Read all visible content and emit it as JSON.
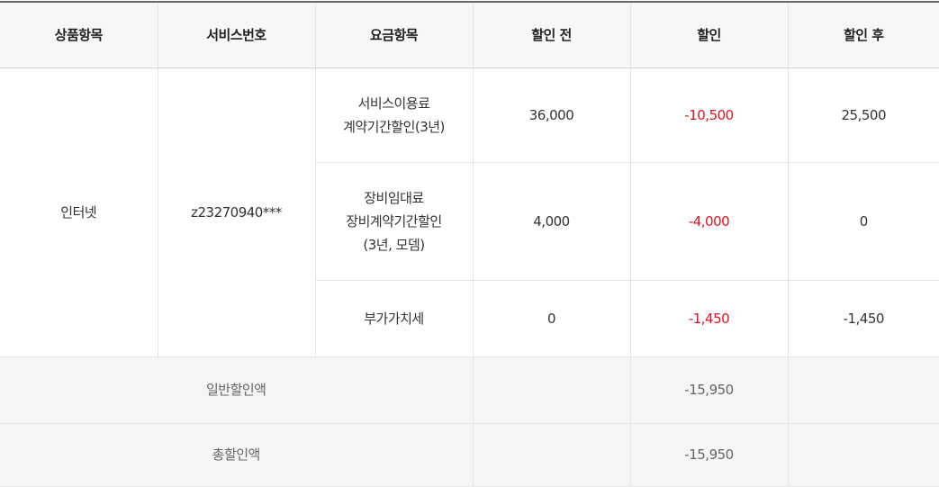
{
  "headers": [
    "상품항목",
    "서비스번호",
    "요금항목",
    "할인 전",
    "할인",
    "할인 후"
  ],
  "product": "인터넷",
  "service_no": "z23270940***",
  "rows": [
    {
      "item_line1": "서비스이용료",
      "item_line2": "계약기간할인(3년)",
      "item_line3": "",
      "before": "36,000",
      "discount": "-10,500",
      "after": "25,500"
    },
    {
      "item_line1": "장비임대료",
      "item_line2": "장비계약기간할인",
      "item_line3": "(3년, 모뎀)",
      "before": "4,000",
      "discount": "-4,000",
      "after": "0"
    },
    {
      "item_line1": "부가가치세",
      "item_line2": "",
      "item_line3": "",
      "before": "0",
      "discount": "-1,450",
      "after": "-1,450"
    }
  ],
  "summary": [
    {
      "label": "일반할인액",
      "discount": "-15,950"
    },
    {
      "label": "총할인액",
      "discount": "-15,950"
    }
  ],
  "colors": {
    "discount": "#e0141e",
    "header_bg": "#f7f7f7",
    "summary_bg": "#f5f5f5"
  }
}
